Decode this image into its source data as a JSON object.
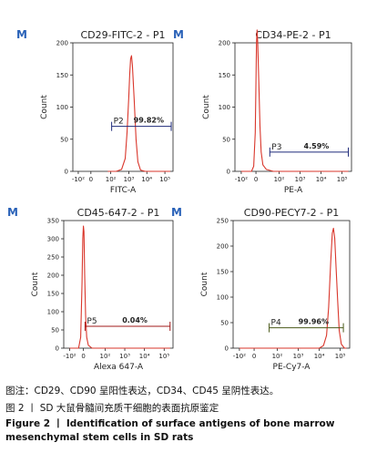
{
  "chart_data": [
    {
      "type": "area",
      "title": "CD29-FITC-2 - P1",
      "corner_mark": "M",
      "xlabel": "FITC-A",
      "ylabel": "Count",
      "xscale": "log",
      "x_ticks": [
        "-10²",
        "0",
        "10²",
        "10³",
        "10⁴",
        "10⁵"
      ],
      "y_ticks": [
        "0",
        "50",
        "100",
        "150",
        "200"
      ],
      "ylim": [
        0,
        200
      ],
      "histogram": [
        [
          1.7,
          0
        ],
        [
          2.3,
          0
        ],
        [
          2.6,
          3
        ],
        [
          2.8,
          20
        ],
        [
          2.9,
          60
        ],
        [
          3.0,
          115
        ],
        [
          3.05,
          150
        ],
        [
          3.1,
          175
        ],
        [
          3.15,
          180
        ],
        [
          3.2,
          165
        ],
        [
          3.3,
          110
        ],
        [
          3.4,
          50
        ],
        [
          3.5,
          15
        ],
        [
          3.65,
          2
        ],
        [
          3.9,
          0
        ],
        [
          5.3,
          0
        ]
      ],
      "gate": {
        "name": "P2",
        "percent": "99.82%",
        "x_start": 2.05,
        "x_end": 5.35,
        "y": 70,
        "color": "#1e2a7a"
      }
    },
    {
      "type": "area",
      "title": "CD34-PE-2 - P1",
      "corner_mark": "M",
      "xlabel": "PE-A",
      "ylabel": "Count",
      "xscale": "log",
      "x_ticks": [
        "-10²",
        "0",
        "10²",
        "10³",
        "10⁴",
        "10⁵"
      ],
      "y_ticks": [
        "0",
        "50",
        "100",
        "150",
        "200"
      ],
      "ylim": [
        0,
        200
      ],
      "histogram": [
        [
          -1.0,
          0
        ],
        [
          -0.3,
          0
        ],
        [
          -0.15,
          8
        ],
        [
          -0.05,
          60
        ],
        [
          0.0,
          140
        ],
        [
          0.05,
          200
        ],
        [
          0.1,
          220
        ],
        [
          0.15,
          200
        ],
        [
          0.25,
          140
        ],
        [
          0.35,
          70
        ],
        [
          0.45,
          30
        ],
        [
          0.6,
          10
        ],
        [
          0.9,
          3
        ],
        [
          1.5,
          0
        ],
        [
          5.3,
          0
        ]
      ],
      "gate": {
        "name": "P3",
        "percent": "4.59%",
        "x_start": 1.2,
        "x_end": 5.3,
        "y": 30,
        "color": "#1e2a7a"
      }
    },
    {
      "type": "area",
      "title": "CD45-647-2 - P1",
      "corner_mark": "M",
      "xlabel": "Alexa 647-A",
      "ylabel": "Count",
      "xscale": "log",
      "x_ticks": [
        "-10²",
        "0",
        "10²",
        "10³",
        "10⁴",
        "10⁵"
      ],
      "y_ticks": [
        "0",
        "50",
        "100",
        "150",
        "200",
        "250",
        "300",
        "350"
      ],
      "ylim": [
        0,
        350
      ],
      "histogram": [
        [
          -1.0,
          0
        ],
        [
          -0.35,
          0
        ],
        [
          -0.2,
          30
        ],
        [
          -0.1,
          180
        ],
        [
          -0.05,
          300
        ],
        [
          0.0,
          335
        ],
        [
          0.05,
          320
        ],
        [
          0.12,
          200
        ],
        [
          0.2,
          90
        ],
        [
          0.3,
          30
        ],
        [
          0.45,
          8
        ],
        [
          0.8,
          0
        ],
        [
          5.3,
          0
        ]
      ],
      "gate": {
        "name": "P5",
        "percent": "0.04%",
        "x_start": 0.15,
        "x_end": 5.3,
        "y": 60,
        "color": "#a01818"
      }
    },
    {
      "type": "area",
      "title": "CD90-PECY7-2 - P1",
      "corner_mark": "M",
      "xlabel": "PE-Cy7-A",
      "ylabel": "Count",
      "xscale": "log",
      "x_ticks": [
        "-10²",
        "0",
        "10²",
        "10³",
        "10⁴",
        "10⁵"
      ],
      "y_ticks": [
        "0",
        "50",
        "100",
        "150",
        "200",
        "250"
      ],
      "ylim": [
        0,
        250
      ],
      "histogram": [
        [
          -1.0,
          0
        ],
        [
          4.0,
          0
        ],
        [
          4.2,
          5
        ],
        [
          4.35,
          25
        ],
        [
          4.45,
          80
        ],
        [
          4.55,
          170
        ],
        [
          4.62,
          225
        ],
        [
          4.68,
          235
        ],
        [
          4.74,
          215
        ],
        [
          4.8,
          160
        ],
        [
          4.88,
          90
        ],
        [
          4.95,
          35
        ],
        [
          5.05,
          8
        ],
        [
          5.2,
          0
        ],
        [
          5.3,
          0
        ]
      ],
      "gate": {
        "name": "P4",
        "percent": "99.96%",
        "x_start": 1.3,
        "x_end": 5.15,
        "y": 40,
        "color": "#4a5a1a"
      }
    }
  ],
  "caption": {
    "note_cn": "图注：CD29、CD90 呈阳性表达，CD34、CD45 呈阴性表达。",
    "figure_cn": "图 2 丨 SD 大鼠骨髓间充质干细胞的表面抗原鉴定",
    "figure_en": "Figure 2 丨 Identification of surface antigens of bone marrow mesenchymal stem cells in SD rats"
  },
  "colors": {
    "histogram": "#d9362b",
    "mark": "#2a62b8",
    "axis": "#222222"
  }
}
